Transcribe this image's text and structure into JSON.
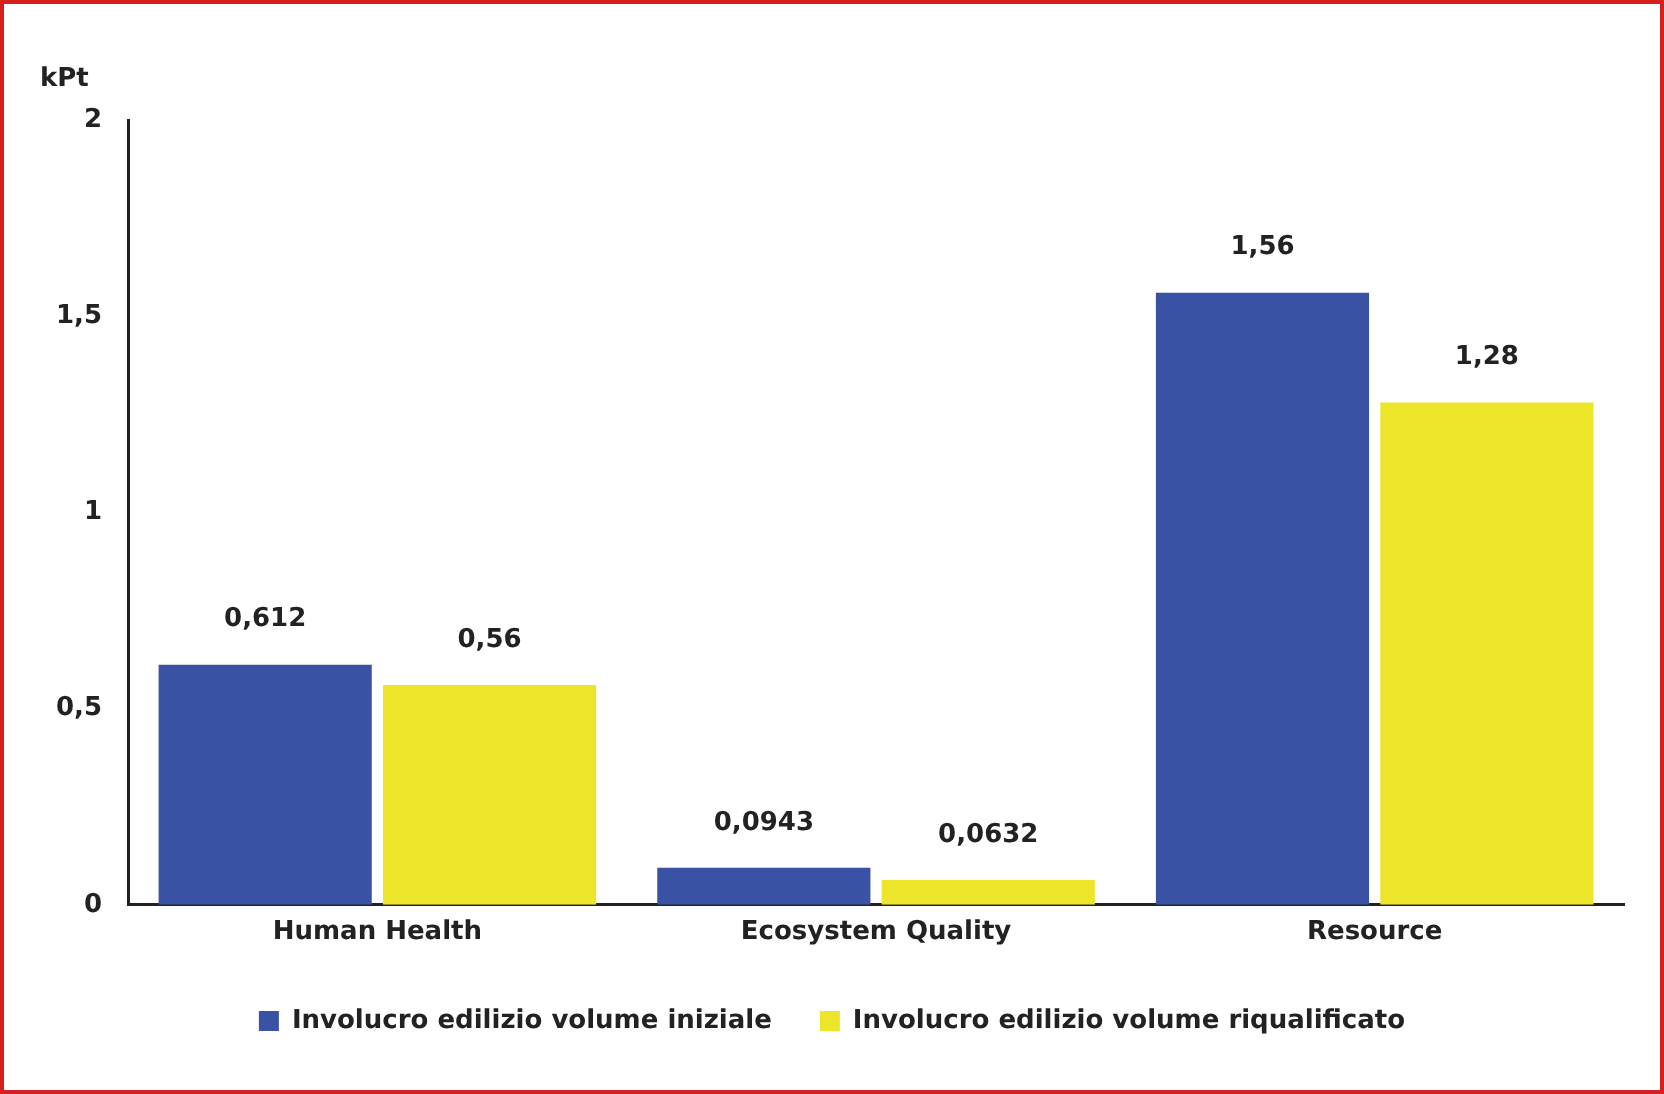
{
  "chart_data": {
    "type": "bar",
    "ylabel": "kPt",
    "categories": [
      "Human Health",
      "Ecosystem Quality",
      "Resource"
    ],
    "series": [
      {
        "name": "Involucro edilizio volume iniziale",
        "color": "#3a52a3",
        "values": [
          0.612,
          0.0943,
          1.56
        ],
        "value_labels": [
          "0,612",
          "0,0943",
          "1,56"
        ]
      },
      {
        "name": "Involucro edilizio volume riqualificato",
        "color": "#ede52a",
        "values": [
          0.56,
          0.0632,
          1.28
        ],
        "value_labels": [
          "0,56",
          "0,0632",
          "1,28"
        ]
      }
    ],
    "ylim": [
      0,
      2
    ],
    "yticks": [
      0,
      {
        "value": 0.5,
        "label": "0,5"
      },
      1,
      {
        "value": 1.5,
        "label": "1,5"
      },
      2
    ],
    "grid": false,
    "legend": "bottom"
  }
}
